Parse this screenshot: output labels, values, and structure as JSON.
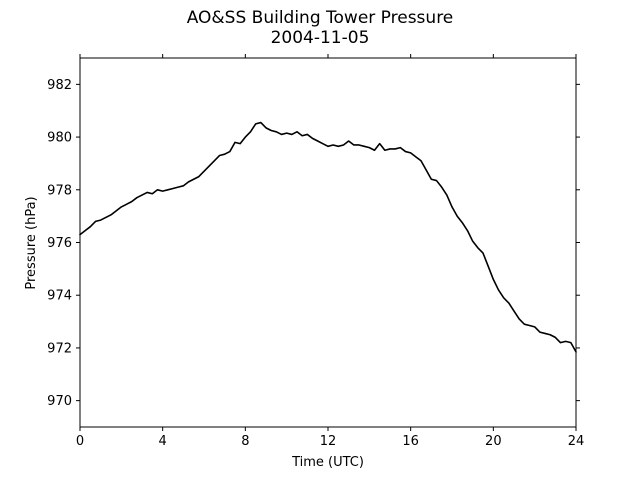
{
  "chart_data": {
    "type": "line",
    "title": [
      "AO&SS Building Tower Pressure",
      "2004-11-05"
    ],
    "xlabel": "Time (UTC)",
    "ylabel": "Pressure (hPa)",
    "xlim": [
      0,
      24
    ],
    "ylim": [
      969,
      983
    ],
    "xticks": [
      0,
      4,
      8,
      12,
      16,
      20,
      24
    ],
    "yticks": [
      970,
      972,
      974,
      976,
      978,
      980,
      982
    ],
    "grid": false,
    "series": [
      {
        "color": "#000000",
        "x": [
          0,
          0.25,
          0.5,
          0.75,
          1.0,
          1.25,
          1.5,
          1.75,
          2.0,
          2.25,
          2.5,
          2.75,
          3.0,
          3.25,
          3.5,
          3.75,
          4.0,
          4.25,
          4.5,
          4.75,
          5.0,
          5.25,
          5.5,
          5.75,
          6.0,
          6.25,
          6.5,
          6.75,
          7.0,
          7.25,
          7.5,
          7.75,
          8.0,
          8.25,
          8.5,
          8.75,
          9.0,
          9.25,
          9.5,
          9.75,
          10.0,
          10.25,
          10.5,
          10.75,
          11.0,
          11.25,
          11.5,
          11.75,
          12.0,
          12.25,
          12.5,
          12.75,
          13.0,
          13.25,
          13.5,
          13.75,
          14.0,
          14.25,
          14.5,
          14.75,
          15.0,
          15.25,
          15.5,
          15.75,
          16.0,
          16.25,
          16.5,
          16.75,
          17.0,
          17.25,
          17.5,
          17.75,
          18.0,
          18.25,
          18.5,
          18.75,
          19.0,
          19.25,
          19.5,
          19.75,
          20.0,
          20.25,
          20.5,
          20.75,
          21.0,
          21.25,
          21.5,
          21.75,
          22.0,
          22.25,
          22.5,
          22.75,
          23.0,
          23.25,
          23.5,
          23.75,
          24.0
        ],
        "values": [
          976.3,
          976.45,
          976.6,
          976.8,
          976.85,
          976.95,
          977.05,
          977.2,
          977.35,
          977.45,
          977.55,
          977.7,
          977.8,
          977.9,
          977.85,
          978.0,
          977.95,
          978.0,
          978.05,
          978.1,
          978.15,
          978.3,
          978.4,
          978.5,
          978.7,
          978.9,
          979.1,
          979.3,
          979.35,
          979.45,
          979.8,
          979.75,
          980.0,
          980.2,
          980.5,
          980.55,
          980.35,
          980.25,
          980.2,
          980.1,
          980.15,
          980.1,
          980.2,
          980.05,
          980.1,
          979.95,
          979.85,
          979.75,
          979.65,
          979.7,
          979.65,
          979.7,
          979.85,
          979.7,
          979.7,
          979.65,
          979.6,
          979.5,
          979.75,
          979.5,
          979.55,
          979.55,
          979.6,
          979.45,
          979.4,
          979.25,
          979.1,
          978.75,
          978.4,
          978.35,
          978.1,
          977.8,
          977.35,
          977.0,
          976.75,
          976.45,
          976.05,
          975.8,
          975.6,
          975.1,
          974.6,
          974.2,
          973.9,
          973.7,
          973.4,
          973.1,
          972.9,
          972.85,
          972.8,
          972.6,
          972.55,
          972.5,
          972.4,
          972.2,
          972.25,
          972.2,
          971.85
        ]
      }
    ]
  }
}
